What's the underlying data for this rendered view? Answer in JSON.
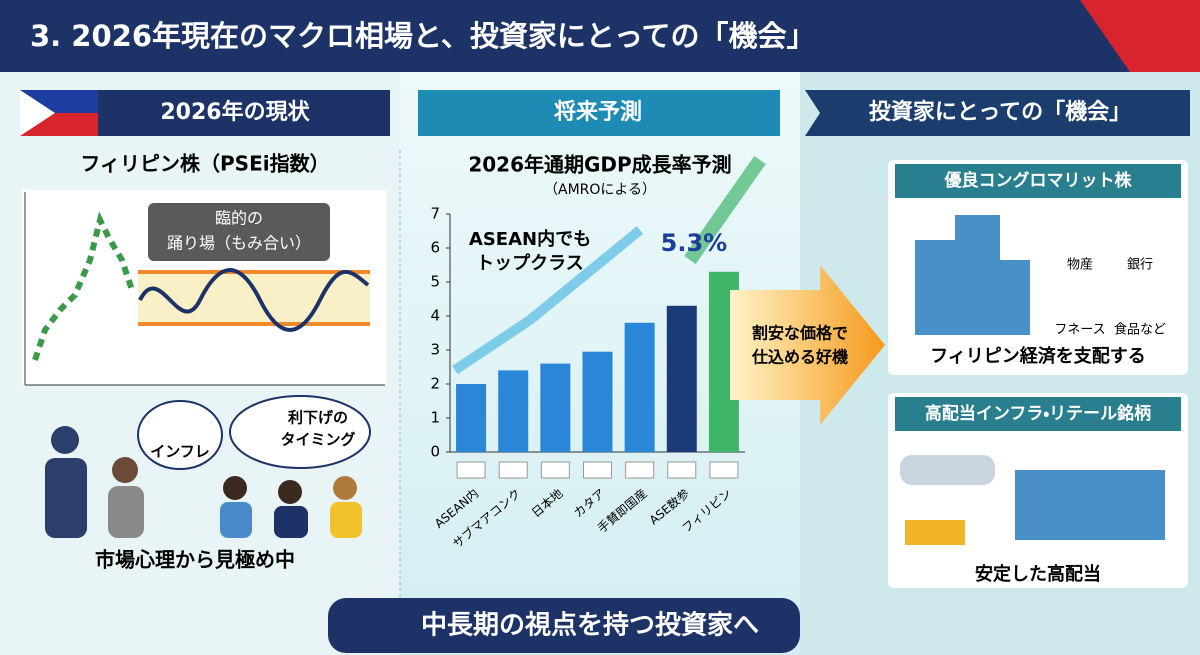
{
  "header": {
    "title": "3. 2026年現在のマクロ相場と、投資家にとっての「機会」"
  },
  "left": {
    "heading": "2026年の現状",
    "stock_title": "フィリピン株（PSEi指数）",
    "callout": [
      "臨的の",
      "踊り場（もみ合い）"
    ],
    "bubble_inflation": "インフレ",
    "bubble_rate": [
      "利下げの",
      "タイミング"
    ],
    "caption": "市場心理から見極め中"
  },
  "middle": {
    "heading": "将来予測"
  },
  "chart_data": {
    "type": "bar",
    "title": "2026年通期GDP成長率予測",
    "subtitle": "（AMROによる）",
    "annotation": [
      "ASEAN内でも",
      "トップクラス"
    ],
    "categories": [
      "ASEAN内",
      "サブマアコンク",
      "日本地",
      "カタア",
      "手賛即国産",
      "ASE数参",
      "フィリピン"
    ],
    "values": [
      2.0,
      2.4,
      2.6,
      2.95,
      3.8,
      4.3,
      5.3
    ],
    "value_labels": [
      null,
      null,
      null,
      null,
      null,
      null,
      "5.3%"
    ],
    "colors": [
      "#2a86d6",
      "#2a86d6",
      "#2a86d6",
      "#2a86d6",
      "#2a86d6",
      "#1a3a78",
      "#3fb56a"
    ],
    "ylim": [
      0,
      7
    ],
    "yticks": [
      0,
      1,
      2,
      3,
      4,
      5,
      6,
      7
    ],
    "grid": false
  },
  "right": {
    "heading": "投資家にとっての「機会」",
    "arrow_text": [
      "割安な価格で",
      "仕込める好機"
    ],
    "box1_title": "優良コングロマリット株",
    "box1_items": [
      "物産",
      "銀行",
      "フネース",
      "食品など"
    ],
    "box1_caption": "フィリピン経済を支配する",
    "box2_title": "高配当インフラ・リテール銘柄",
    "box2_caption": "安定した高配当"
  },
  "footer": {
    "banner": "中長期の視点を持つ投資家へ"
  }
}
